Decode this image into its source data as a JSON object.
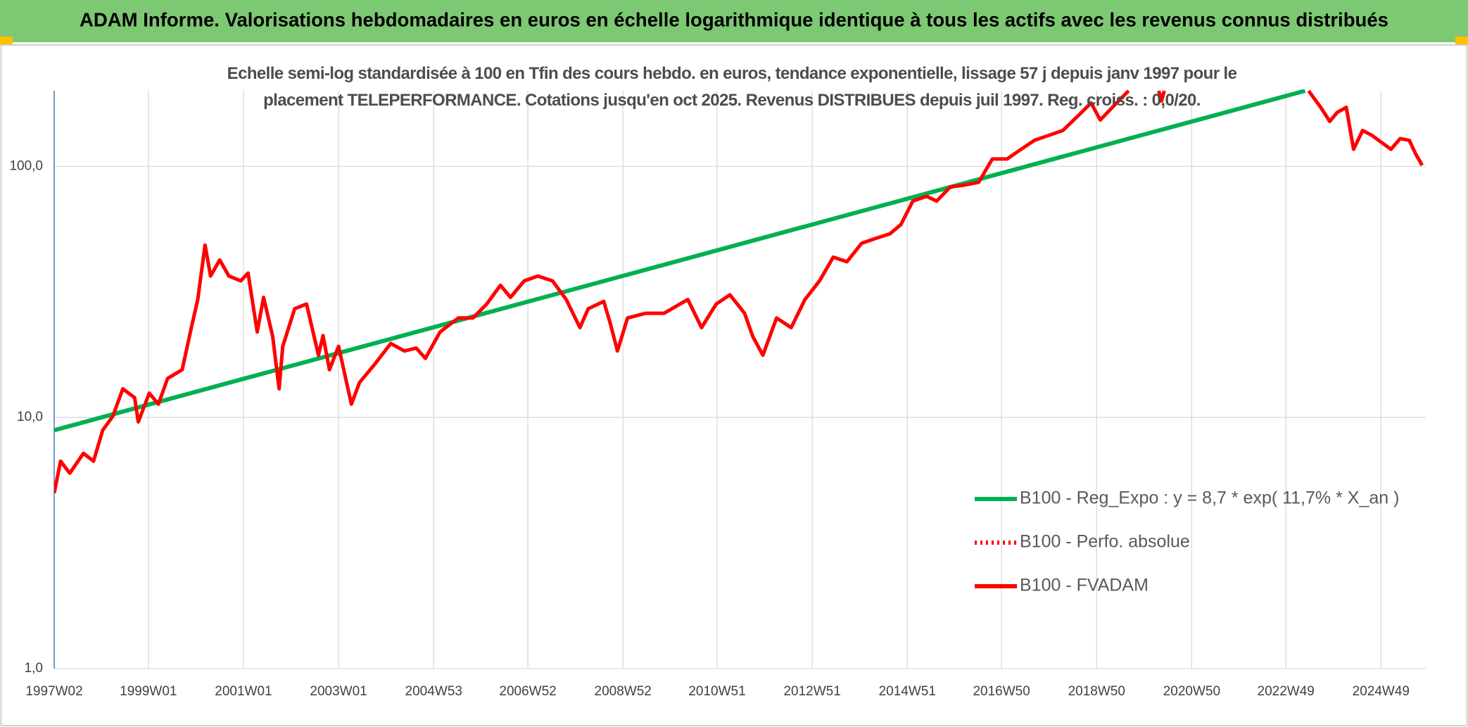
{
  "chart_data": {
    "type": "line",
    "title": "ADAM Informe. Valorisations hebdomadaires en euros en échelle logarithmique identique à tous les actifs avec les revenus connus distribués",
    "subtitle": "Echelle semi-log standardisée à 100 en Tfin des cours hebdo. en euros, tendance exponentielle, lissage 57 j depuis janv 1997 pour le placement TELEPERFORMANCE. Cotations jusqu'en oct 2025. Revenus DISTRIBUES depuis juil 1997. Reg. croiss. : 0,0/20.",
    "log_scale": true,
    "grid": true,
    "legend": "lower-right",
    "xlim": [
      "1997W02",
      "2025W46"
    ],
    "xticks": [
      "1997W02",
      "1999W01",
      "2001W01",
      "2003W01",
      "2004W53",
      "2006W52",
      "2008W52",
      "2010W51",
      "2012W51",
      "2014W51",
      "2016W50",
      "2018W50",
      "2020W50",
      "2022W49",
      "2024W49"
    ],
    "ylim": [
      1,
      200
    ],
    "yticks": [
      {
        "value": 1,
        "label": "1,0"
      },
      {
        "value": 10,
        "label": "10,0"
      },
      {
        "value": 100,
        "label": "100,0"
      }
    ],
    "series": [
      {
        "name": "B100 - Reg_Expo : y = 8,7 * exp( 11,7% *  X_an )",
        "color": "#00b050",
        "style": "solid",
        "x": [
          "1997W02",
          "2023W18"
        ],
        "values": [
          8.9,
          200
        ]
      },
      {
        "name": "B100 - Perfo. absolue",
        "color": "#ff0000",
        "style": "dotted"
      },
      {
        "name": "B100 - FVADAM",
        "color": "#ff0000",
        "style": "solid",
        "x": [
          "1997W02",
          "1997W09",
          "1997W19",
          "1997W34",
          "1997W45",
          "1998W03",
          "1998W14",
          "1998W25",
          "1998W38",
          "1998W42",
          "1999W02",
          "1999W12",
          "1999W22",
          "1999W38",
          "1999W48",
          "2000W03",
          "2000W11",
          "2000W17",
          "2000W27",
          "2000W37",
          "2000W50",
          "2001W06",
          "2001W16",
          "2001W23",
          "2001W33",
          "2001W40",
          "2001W44",
          "2002W05",
          "2002W18",
          "2002W31",
          "2002W36",
          "2002W43",
          "2003W01",
          "2003W15",
          "2003W24",
          "2003W40",
          "2004W06",
          "2004W21",
          "2004W34",
          "2004W44",
          "2005W08",
          "2005W28",
          "2005W44",
          "2006W07",
          "2006W22",
          "2006W33",
          "2006W48",
          "2007W11",
          "2007W27",
          "2007W42",
          "2008W05",
          "2008W14",
          "2008W31",
          "2008W38",
          "2008W46",
          "2009W05",
          "2009W25",
          "2009W45",
          "2010W19",
          "2010W34",
          "2010W50",
          "2011W13",
          "2011W29",
          "2011W38",
          "2011W49",
          "2012W12",
          "2012W28",
          "2012W43",
          "2013W07",
          "2013W22",
          "2013W37",
          "2014W01",
          "2014W16",
          "2014W32",
          "2014W44",
          "2015W05",
          "2015W20",
          "2015W31",
          "2015W46",
          "2016W09",
          "2016W25",
          "2016W40",
          "2017W04",
          "2017W19",
          "2017W34",
          "2017W50",
          "2018W13",
          "2018W29",
          "2018W44",
          "2019W02",
          "2019W18",
          "2019W33",
          "2019W45",
          "2020W14",
          "2020W17",
          "2020W20",
          "2021W26",
          "2023W22",
          "2023W24",
          "2023W35",
          "2023W45",
          "2024W01",
          "2024W11",
          "2024W19",
          "2024W29",
          "2024W39",
          "2024W49",
          "2025W08",
          "2025W18",
          "2025W28",
          "2025W35",
          "2025W42"
        ],
        "values": [
          5.0,
          6.7,
          6.0,
          7.2,
          6.7,
          8.9,
          10.1,
          13.0,
          12.0,
          9.6,
          12.5,
          11.3,
          14.3,
          15.5,
          22.8,
          29.5,
          48.6,
          36.6,
          42.4,
          36.6,
          35.0,
          37.6,
          21.9,
          30.1,
          21.0,
          13.0,
          19.2,
          27.1,
          28.3,
          17.7,
          21.2,
          15.5,
          19.2,
          11.3,
          13.8,
          16.2,
          19.7,
          18.4,
          18.9,
          17.2,
          21.9,
          24.9,
          24.9,
          28.3,
          33.6,
          30.1,
          35.0,
          36.6,
          35.0,
          29.5,
          22.8,
          27.1,
          29.0,
          23.8,
          18.4,
          24.9,
          26.0,
          26.0,
          29.5,
          22.8,
          28.3,
          30.8,
          26.0,
          21.0,
          17.7,
          24.9,
          22.8,
          29.5,
          35.0,
          43.5,
          41.7,
          49.4,
          51.6,
          53.9,
          58.7,
          72.7,
          76.0,
          72.7,
          82.8,
          84.2,
          86.4,
          107,
          107,
          116.7,
          127,
          133,
          139,
          158,
          179,
          153,
          176,
          200,
          null,
          200,
          182,
          200,
          null,
          200,
          195,
          172,
          151,
          164,
          172,
          117,
          139,
          133,
          125,
          117,
          129,
          127,
          112,
          101
        ]
      }
    ]
  }
}
